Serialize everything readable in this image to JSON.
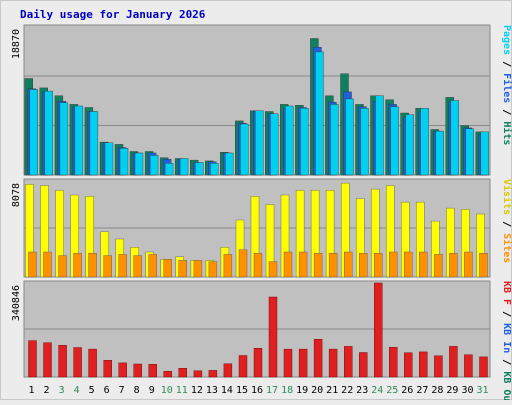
{
  "colors": {
    "hits": "#0f7f5f",
    "files": "#1f5fe0",
    "pages": "#00d0f0",
    "visits": "#ffff00",
    "sites": "#ff9000",
    "kb_f": "#e02020",
    "kb_in": "#1f5fe0",
    "kb_out": "#0f7f5f",
    "weekend": "#2e8b57",
    "weekday": "#000000",
    "title": "#0000c0"
  },
  "chart_data": [
    {
      "type": "bar",
      "title": "Daily usage for January 2026",
      "categories": [
        "1",
        "2",
        "3",
        "4",
        "5",
        "6",
        "7",
        "8",
        "9",
        "10",
        "11",
        "12",
        "13",
        "14",
        "15",
        "16",
        "17",
        "18",
        "19",
        "20",
        "21",
        "22",
        "23",
        "24",
        "25",
        "26",
        "27",
        "28",
        "29",
        "30",
        "31"
      ],
      "weekend_days": [
        "3",
        "4",
        "10",
        "11",
        "17",
        "18",
        "24",
        "25",
        "31"
      ],
      "ylabel_max": "18870",
      "ylim": [
        0,
        18870
      ],
      "legend": [
        "Pages",
        "Files",
        "Hits"
      ],
      "series": [
        {
          "name": "Hits",
          "values": [
            12300,
            11100,
            10100,
            9000,
            8600,
            4200,
            3900,
            3000,
            3000,
            2200,
            2100,
            1900,
            1800,
            2900,
            6900,
            8200,
            8100,
            9000,
            8900,
            17400,
            10100,
            12900,
            9000,
            10100,
            9600,
            7900,
            8500,
            5800,
            9900,
            6300,
            5500
          ]
        },
        {
          "name": "Files",
          "values": [
            11000,
            10600,
            9400,
            8700,
            8100,
            4100,
            3500,
            2800,
            2800,
            2000,
            2000,
            1600,
            1700,
            2800,
            6600,
            8100,
            7800,
            8500,
            8600,
            16300,
            9300,
            10600,
            8700,
            9400,
            9000,
            7400,
            8100,
            5600,
            9300,
            6000,
            5200
          ]
        },
        {
          "name": "Pages",
          "values": [
            10900,
            10700,
            9200,
            8800,
            8100,
            4100,
            3400,
            2800,
            2500,
            1500,
            2100,
            1600,
            1500,
            2800,
            6500,
            8200,
            7800,
            8800,
            8500,
            15700,
            9000,
            9700,
            8500,
            10100,
            8700,
            7700,
            8500,
            5600,
            9500,
            5900,
            5500
          ]
        }
      ]
    },
    {
      "type": "bar",
      "ylabel_max": "8078",
      "ylim": [
        0,
        8078
      ],
      "legend": [
        "Visits",
        "Sites"
      ],
      "series": [
        {
          "name": "Visits",
          "values": [
            7800,
            7700,
            7300,
            6900,
            6800,
            3800,
            3200,
            2500,
            2100,
            1500,
            1700,
            1400,
            1400,
            2500,
            4800,
            6800,
            6100,
            6900,
            7300,
            7300,
            7300,
            7900,
            6600,
            7400,
            7700,
            6300,
            6300,
            4700,
            5800,
            5700,
            5300
          ]
        },
        {
          "name": "Sites",
          "values": [
            2100,
            2100,
            1800,
            2000,
            2000,
            1800,
            1900,
            1800,
            1900,
            1500,
            1400,
            1400,
            1300,
            1900,
            2300,
            2000,
            1300,
            2100,
            2100,
            2000,
            2000,
            2100,
            2000,
            2000,
            2100,
            2100,
            2100,
            1900,
            2000,
            2100,
            2000
          ]
        }
      ]
    },
    {
      "type": "bar",
      "ylabel_max": "340846",
      "ylim": [
        0,
        340846
      ],
      "legend": [
        "KB F",
        "KB In",
        "KB Out"
      ],
      "series": [
        {
          "name": "KB F",
          "values": [
            132000,
            124000,
            115000,
            107000,
            101000,
            61000,
            51000,
            47000,
            46000,
            21000,
            32000,
            23000,
            24000,
            48000,
            78000,
            104000,
            290000,
            101000,
            101000,
            137000,
            101000,
            111000,
            89000,
            340846,
            108000,
            88000,
            91000,
            77000,
            111000,
            81000,
            73000
          ]
        }
      ]
    }
  ]
}
